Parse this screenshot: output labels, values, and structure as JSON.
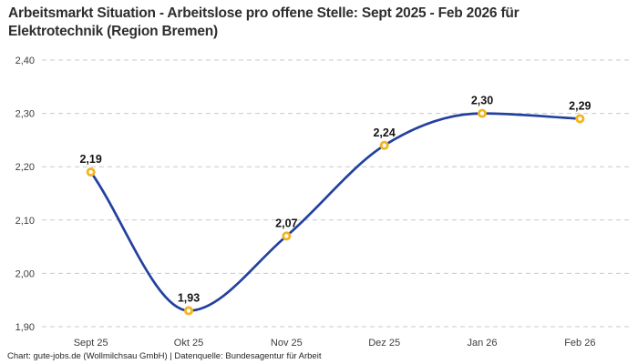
{
  "title": {
    "line1": "Arbeitsmarkt Situation - Arbeitslose pro offene Stelle: Sept 2025 - Feb 2026 für",
    "line2": "Elektrotechnik (Region Bremen)"
  },
  "footer": {
    "text": "Chart: gute-jobs.de (Wollmilchsau GmbH) | Datenquelle: Bundesagentur für Arbeit"
  },
  "chart_data": {
    "type": "line",
    "smooth": true,
    "title": "Arbeitsmarkt Situation - Arbeitslose pro offene Stelle: Sept 2025 - Feb 2026 für Elektrotechnik (Region Bremen)",
    "categories": [
      "Sept 25",
      "Okt 25",
      "Nov 25",
      "Dez 25",
      "Jan 26",
      "Feb 26"
    ],
    "values": [
      2.19,
      1.93,
      2.07,
      2.24,
      2.3,
      2.29
    ],
    "point_labels": [
      "2,19",
      "1,93",
      "2,07",
      "2,24",
      "2,30",
      "2,29"
    ],
    "ylim": [
      1.9,
      2.4
    ],
    "y_ticks": [
      {
        "value": 1.9,
        "label": "1,90"
      },
      {
        "value": 2.0,
        "label": "2,00"
      },
      {
        "value": 2.1,
        "label": "2,10"
      },
      {
        "value": 2.2,
        "label": "2,20"
      },
      {
        "value": 2.3,
        "label": "2,30"
      },
      {
        "value": 2.4,
        "label": "2,40"
      }
    ],
    "grid": {
      "horizontal": true,
      "style": "dashed"
    },
    "legend": "none",
    "colors": {
      "line": "#23409f",
      "marker_stroke": "#f4b41d",
      "marker_fill": "#ffffff",
      "gridline": "#c9c9c9",
      "tick_label": "#3d3d3d",
      "point_label": "#141414"
    }
  }
}
